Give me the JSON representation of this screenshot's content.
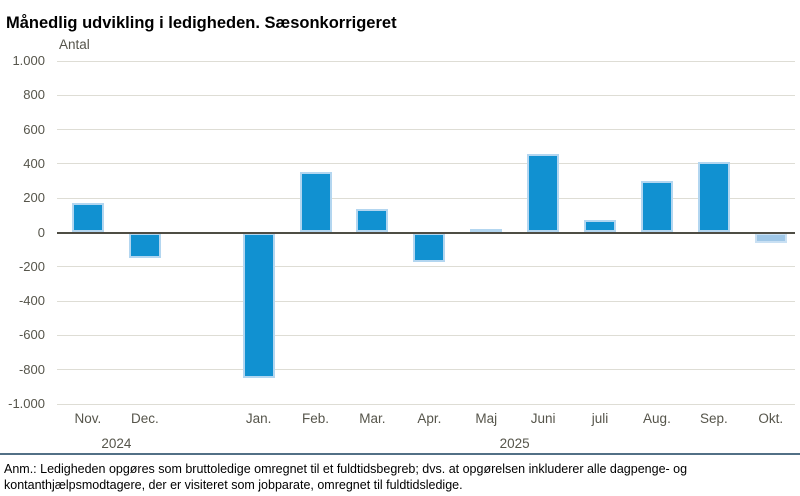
{
  "header": {
    "title": "Månedlig udvikling i ledigheden. Sæsonkorrigeret"
  },
  "chart_data": {
    "type": "bar",
    "title": "Månedlig udvikling i ledigheden. Sæsonkorrigeret",
    "unit_label": "Antal",
    "categories": [
      "Nov.",
      "Dec.",
      "",
      "Jan.",
      "Feb.",
      "Mar.",
      "Apr.",
      "Maj",
      "Juni",
      "juli",
      "Aug.",
      "Sep.",
      "Okt."
    ],
    "values": [
      170,
      -150,
      null,
      -850,
      350,
      135,
      -170,
      20,
      460,
      70,
      300,
      410,
      -60
    ],
    "gap_note": "empty slot between Dec. 2024 and Jan. 2025 (data break)",
    "year_labels": [
      {
        "text": "2024",
        "from_slot": 0,
        "to_slot": 1
      },
      {
        "text": "2025",
        "from_slot": 3,
        "to_slot": 12
      }
    ],
    "ylim": [
      -1000,
      1000
    ],
    "ytick_interval": 200,
    "ytick_labels": [
      "1.000",
      "800",
      "600",
      "400",
      "200",
      "0",
      "-200",
      "-400",
      "-600",
      "-800",
      "-1.000"
    ],
    "grid": true,
    "legend": "none",
    "colors": {
      "bar_fill": "#1191d1",
      "bar_border": "#b3d6f0",
      "highlight_fill": "#9fc7e7",
      "highlight_border": "#c9e0f3",
      "gridline": "#deddd5",
      "zero_line": "#4e4d44",
      "axis_text": "#56554b",
      "divider": "#527086"
    },
    "highlight_slots": [
      12
    ]
  },
  "footer": {
    "note": "Anm.: Ledigheden opgøres som bruttoledige omregnet til et fuldtidsbegreb; dvs. at opgørelsen inkluderer alle dagpenge- og kontanthjælpsmodtagere, der er visiteret som jobparate, omregnet til fuldtidsledige."
  }
}
